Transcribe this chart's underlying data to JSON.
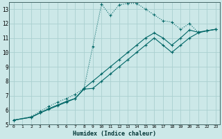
{
  "xlabel": "Humidex (Indice chaleur)",
  "bg_color": "#cce8e8",
  "grid_color": "#aad0d0",
  "line_color": "#006666",
  "xlim": [
    -0.5,
    23.5
  ],
  "ylim": [
    5,
    13.5
  ],
  "xticks": [
    0,
    1,
    2,
    3,
    4,
    5,
    6,
    7,
    8,
    9,
    10,
    11,
    12,
    13,
    14,
    15,
    16,
    17,
    18,
    19,
    20,
    21,
    22,
    23
  ],
  "yticks": [
    5,
    6,
    7,
    8,
    9,
    10,
    11,
    12,
    13
  ],
  "series1_x": [
    0,
    2,
    3,
    4,
    5,
    6,
    7,
    8,
    9,
    10,
    11,
    12,
    13,
    14,
    15,
    16,
    17,
    18,
    19,
    20,
    21,
    22,
    23
  ],
  "series1_y": [
    5.3,
    5.55,
    5.9,
    6.25,
    6.55,
    6.8,
    7.1,
    7.5,
    10.4,
    13.35,
    12.55,
    13.3,
    13.4,
    13.4,
    13.0,
    12.6,
    12.2,
    12.1,
    11.6,
    12.0,
    11.4,
    11.5,
    11.6
  ],
  "series2_x": [
    0,
    2,
    3,
    4,
    5,
    6,
    7,
    8,
    9,
    10,
    11,
    12,
    13,
    14,
    15,
    16,
    17,
    18,
    19,
    20,
    21,
    22,
    23
  ],
  "series2_y": [
    5.3,
    5.5,
    5.8,
    6.1,
    6.35,
    6.6,
    6.8,
    7.5,
    8.0,
    8.5,
    9.0,
    9.5,
    10.0,
    10.5,
    11.0,
    11.35,
    11.0,
    10.5,
    11.0,
    11.55,
    11.4,
    11.5,
    11.6
  ],
  "series3_x": [
    0,
    2,
    3,
    4,
    5,
    6,
    7,
    8,
    9,
    10,
    11,
    12,
    13,
    14,
    15,
    16,
    17,
    18,
    19,
    20,
    21,
    22,
    23
  ],
  "series3_y": [
    5.3,
    5.5,
    5.8,
    6.05,
    6.3,
    6.55,
    6.8,
    7.45,
    7.5,
    8.0,
    8.5,
    9.0,
    9.5,
    10.0,
    10.5,
    11.0,
    10.5,
    10.0,
    10.5,
    11.0,
    11.35,
    11.5,
    11.6
  ]
}
